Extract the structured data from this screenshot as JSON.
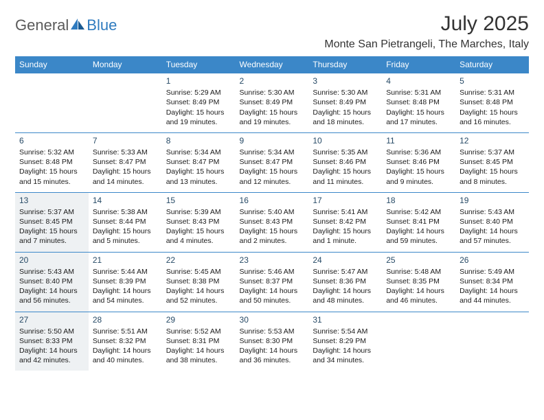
{
  "logo": {
    "general": "General",
    "blue": "Blue"
  },
  "title": "July 2025",
  "location": "Monte San Pietrangeli, The Marches, Italy",
  "colors": {
    "header_bg": "#3b87c8",
    "header_text": "#ffffff",
    "shaded_bg": "#eef1f3",
    "daynum_color": "#274a66",
    "rule_color": "#3b87c8"
  },
  "day_headers": [
    "Sunday",
    "Monday",
    "Tuesday",
    "Wednesday",
    "Thursday",
    "Friday",
    "Saturday"
  ],
  "weeks": [
    [
      null,
      null,
      {
        "num": "1",
        "sunrise": "Sunrise: 5:29 AM",
        "sunset": "Sunset: 8:49 PM",
        "daylight": "Daylight: 15 hours and 19 minutes.",
        "shaded": false
      },
      {
        "num": "2",
        "sunrise": "Sunrise: 5:30 AM",
        "sunset": "Sunset: 8:49 PM",
        "daylight": "Daylight: 15 hours and 19 minutes.",
        "shaded": false
      },
      {
        "num": "3",
        "sunrise": "Sunrise: 5:30 AM",
        "sunset": "Sunset: 8:49 PM",
        "daylight": "Daylight: 15 hours and 18 minutes.",
        "shaded": false
      },
      {
        "num": "4",
        "sunrise": "Sunrise: 5:31 AM",
        "sunset": "Sunset: 8:48 PM",
        "daylight": "Daylight: 15 hours and 17 minutes.",
        "shaded": false
      },
      {
        "num": "5",
        "sunrise": "Sunrise: 5:31 AM",
        "sunset": "Sunset: 8:48 PM",
        "daylight": "Daylight: 15 hours and 16 minutes.",
        "shaded": false
      }
    ],
    [
      {
        "num": "6",
        "sunrise": "Sunrise: 5:32 AM",
        "sunset": "Sunset: 8:48 PM",
        "daylight": "Daylight: 15 hours and 15 minutes.",
        "shaded": false
      },
      {
        "num": "7",
        "sunrise": "Sunrise: 5:33 AM",
        "sunset": "Sunset: 8:47 PM",
        "daylight": "Daylight: 15 hours and 14 minutes.",
        "shaded": false
      },
      {
        "num": "8",
        "sunrise": "Sunrise: 5:34 AM",
        "sunset": "Sunset: 8:47 PM",
        "daylight": "Daylight: 15 hours and 13 minutes.",
        "shaded": false
      },
      {
        "num": "9",
        "sunrise": "Sunrise: 5:34 AM",
        "sunset": "Sunset: 8:47 PM",
        "daylight": "Daylight: 15 hours and 12 minutes.",
        "shaded": false
      },
      {
        "num": "10",
        "sunrise": "Sunrise: 5:35 AM",
        "sunset": "Sunset: 8:46 PM",
        "daylight": "Daylight: 15 hours and 11 minutes.",
        "shaded": false
      },
      {
        "num": "11",
        "sunrise": "Sunrise: 5:36 AM",
        "sunset": "Sunset: 8:46 PM",
        "daylight": "Daylight: 15 hours and 9 minutes.",
        "shaded": false
      },
      {
        "num": "12",
        "sunrise": "Sunrise: 5:37 AM",
        "sunset": "Sunset: 8:45 PM",
        "daylight": "Daylight: 15 hours and 8 minutes.",
        "shaded": false
      }
    ],
    [
      {
        "num": "13",
        "sunrise": "Sunrise: 5:37 AM",
        "sunset": "Sunset: 8:45 PM",
        "daylight": "Daylight: 15 hours and 7 minutes.",
        "shaded": true
      },
      {
        "num": "14",
        "sunrise": "Sunrise: 5:38 AM",
        "sunset": "Sunset: 8:44 PM",
        "daylight": "Daylight: 15 hours and 5 minutes.",
        "shaded": false
      },
      {
        "num": "15",
        "sunrise": "Sunrise: 5:39 AM",
        "sunset": "Sunset: 8:43 PM",
        "daylight": "Daylight: 15 hours and 4 minutes.",
        "shaded": false
      },
      {
        "num": "16",
        "sunrise": "Sunrise: 5:40 AM",
        "sunset": "Sunset: 8:43 PM",
        "daylight": "Daylight: 15 hours and 2 minutes.",
        "shaded": false
      },
      {
        "num": "17",
        "sunrise": "Sunrise: 5:41 AM",
        "sunset": "Sunset: 8:42 PM",
        "daylight": "Daylight: 15 hours and 1 minute.",
        "shaded": false
      },
      {
        "num": "18",
        "sunrise": "Sunrise: 5:42 AM",
        "sunset": "Sunset: 8:41 PM",
        "daylight": "Daylight: 14 hours and 59 minutes.",
        "shaded": false
      },
      {
        "num": "19",
        "sunrise": "Sunrise: 5:43 AM",
        "sunset": "Sunset: 8:40 PM",
        "daylight": "Daylight: 14 hours and 57 minutes.",
        "shaded": false
      }
    ],
    [
      {
        "num": "20",
        "sunrise": "Sunrise: 5:43 AM",
        "sunset": "Sunset: 8:40 PM",
        "daylight": "Daylight: 14 hours and 56 minutes.",
        "shaded": true
      },
      {
        "num": "21",
        "sunrise": "Sunrise: 5:44 AM",
        "sunset": "Sunset: 8:39 PM",
        "daylight": "Daylight: 14 hours and 54 minutes.",
        "shaded": false
      },
      {
        "num": "22",
        "sunrise": "Sunrise: 5:45 AM",
        "sunset": "Sunset: 8:38 PM",
        "daylight": "Daylight: 14 hours and 52 minutes.",
        "shaded": false
      },
      {
        "num": "23",
        "sunrise": "Sunrise: 5:46 AM",
        "sunset": "Sunset: 8:37 PM",
        "daylight": "Daylight: 14 hours and 50 minutes.",
        "shaded": false
      },
      {
        "num": "24",
        "sunrise": "Sunrise: 5:47 AM",
        "sunset": "Sunset: 8:36 PM",
        "daylight": "Daylight: 14 hours and 48 minutes.",
        "shaded": false
      },
      {
        "num": "25",
        "sunrise": "Sunrise: 5:48 AM",
        "sunset": "Sunset: 8:35 PM",
        "daylight": "Daylight: 14 hours and 46 minutes.",
        "shaded": false
      },
      {
        "num": "26",
        "sunrise": "Sunrise: 5:49 AM",
        "sunset": "Sunset: 8:34 PM",
        "daylight": "Daylight: 14 hours and 44 minutes.",
        "shaded": false
      }
    ],
    [
      {
        "num": "27",
        "sunrise": "Sunrise: 5:50 AM",
        "sunset": "Sunset: 8:33 PM",
        "daylight": "Daylight: 14 hours and 42 minutes.",
        "shaded": true
      },
      {
        "num": "28",
        "sunrise": "Sunrise: 5:51 AM",
        "sunset": "Sunset: 8:32 PM",
        "daylight": "Daylight: 14 hours and 40 minutes.",
        "shaded": false
      },
      {
        "num": "29",
        "sunrise": "Sunrise: 5:52 AM",
        "sunset": "Sunset: 8:31 PM",
        "daylight": "Daylight: 14 hours and 38 minutes.",
        "shaded": false
      },
      {
        "num": "30",
        "sunrise": "Sunrise: 5:53 AM",
        "sunset": "Sunset: 8:30 PM",
        "daylight": "Daylight: 14 hours and 36 minutes.",
        "shaded": false
      },
      {
        "num": "31",
        "sunrise": "Sunrise: 5:54 AM",
        "sunset": "Sunset: 8:29 PM",
        "daylight": "Daylight: 14 hours and 34 minutes.",
        "shaded": false
      },
      null,
      null
    ]
  ]
}
